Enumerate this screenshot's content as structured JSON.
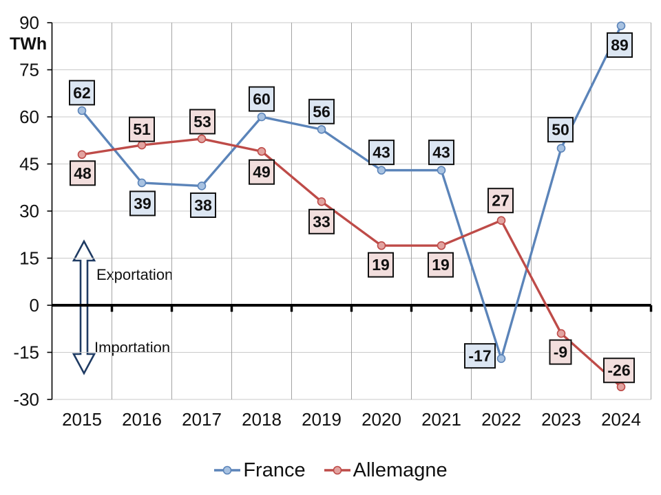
{
  "chart_data": {
    "type": "line",
    "title": "",
    "ylabel": "TWh",
    "categories": [
      "2015",
      "2016",
      "2017",
      "2018",
      "2019",
      "2020",
      "2021",
      "2022",
      "2023",
      "2024"
    ],
    "series": [
      {
        "name": "France",
        "color": "#5B84B9",
        "marker_fill": "#A8C2E1",
        "label_fill": "#DCE6F2",
        "values": [
          62,
          39,
          38,
          60,
          56,
          43,
          43,
          -17,
          50,
          89
        ],
        "label_offsets": [
          [
            0,
            -26
          ],
          [
            1,
            30
          ],
          [
            2,
            28
          ],
          [
            0,
            -26
          ],
          [
            0,
            -26
          ],
          [
            0,
            -26
          ],
          [
            0,
            -26
          ],
          [
            -31,
            -4
          ],
          [
            -1,
            -27
          ],
          [
            -2,
            28
          ]
        ]
      },
      {
        "name": "Allemagne",
        "color": "#BE4B48",
        "marker_fill": "#E2A3A0",
        "label_fill": "#F2DEDD",
        "values": [
          48,
          51,
          53,
          49,
          33,
          19,
          19,
          27,
          -9,
          -26
        ],
        "label_offsets": [
          [
            1,
            27
          ],
          [
            0,
            -23
          ],
          [
            1,
            -25
          ],
          [
            0,
            30
          ],
          [
            0,
            29
          ],
          [
            -1,
            28
          ],
          [
            -1,
            28
          ],
          [
            -1,
            -29
          ],
          [
            -1,
            27
          ],
          [
            -3,
            -24
          ]
        ]
      }
    ],
    "ylim": [
      -30,
      90
    ],
    "yticks": [
      90,
      75,
      60,
      45,
      30,
      15,
      0,
      -15,
      -30
    ],
    "grid": true,
    "legend_position": "bottom",
    "annotations": {
      "export_label": "Exportation",
      "import_label": "Importation"
    },
    "colors": {
      "grid_v": "#A3A3A3",
      "grid_h": "#C9C9C9",
      "axis": "#000000",
      "arrow_outline": "#1F3B63",
      "text": "#111111"
    }
  }
}
